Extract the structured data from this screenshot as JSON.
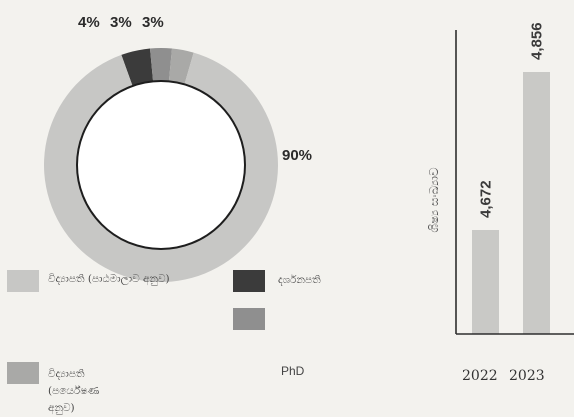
{
  "chart_data": [
    {
      "type": "pie",
      "categories": [
        "විද්‍යාපති (පාඨමාලාව අනුව)",
        "දර්ශනපති",
        "",
        "PhD"
      ],
      "values": [
        90,
        4,
        3,
        3
      ],
      "value_labels": [
        "90%",
        "4%",
        "3%",
        "3%"
      ],
      "colors": [
        "#c7c7c5",
        "#3b3b3b",
        "#8f8f8f",
        "#a9a9a7"
      ],
      "title": "",
      "legend_position": "bottom"
    },
    {
      "type": "bar",
      "categories": [
        "2022",
        "2023"
      ],
      "values": [
        4672,
        4856
      ],
      "value_labels": [
        "4,672",
        "4,856"
      ],
      "ylabel": "ශිෂ්‍ය සංඛ්‍යාව",
      "title": "",
      "grid": false,
      "colors": [
        "#c9c9c6",
        "#c9c9c6"
      ]
    }
  ],
  "legend": {
    "items": [
      {
        "label": "විද්‍යාපති (පාඨමාලාව අනුව)",
        "color": "#c7c7c5"
      },
      {
        "label": "දර්ශනපති",
        "color": "#3b3b3b"
      },
      {
        "label": "",
        "color": "#8f8f8f"
      },
      {
        "label": "විද්‍යාපති (පර්යේෂණ අනුව)",
        "color": "#a9a9a7"
      },
      {
        "label": "PhD",
        "color": ""
      }
    ]
  }
}
